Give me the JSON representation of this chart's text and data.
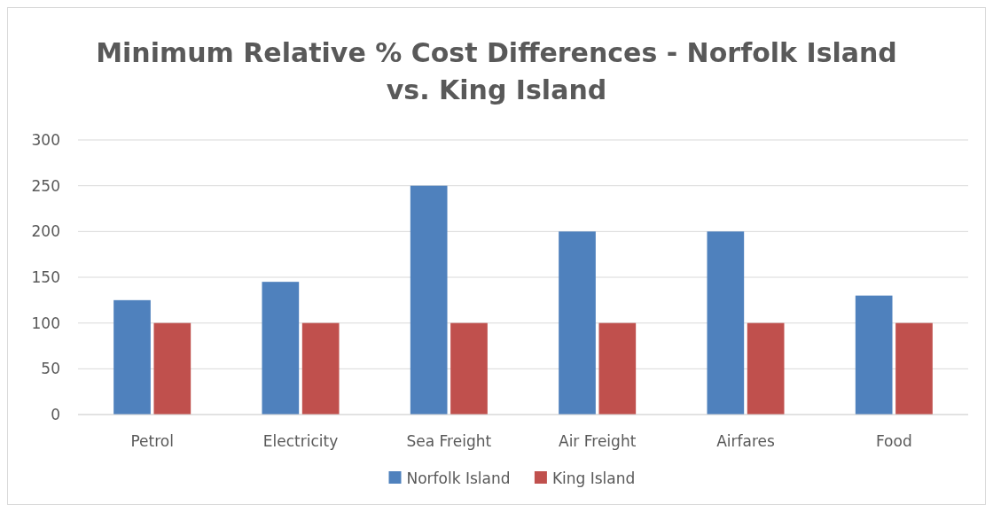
{
  "chart_data": {
    "type": "bar",
    "title": "Minimum Relative % Cost Differences - Norfolk Island vs. King Island",
    "categories": [
      "Petrol",
      "Electricity",
      "Sea Freight",
      "Air Freight",
      "Airfares",
      "Food"
    ],
    "series": [
      {
        "name": "Norfolk Island",
        "color": "#4f81bd",
        "values": [
          125,
          145,
          250,
          200,
          200,
          130
        ]
      },
      {
        "name": "King Island",
        "color": "#c0504d",
        "values": [
          100,
          100,
          100,
          100,
          100,
          100
        ]
      }
    ],
    "ylim": [
      0,
      300
    ],
    "yticks": [
      0,
      50,
      100,
      150,
      200,
      250,
      300
    ],
    "grid": "y",
    "legend": "bottom"
  }
}
